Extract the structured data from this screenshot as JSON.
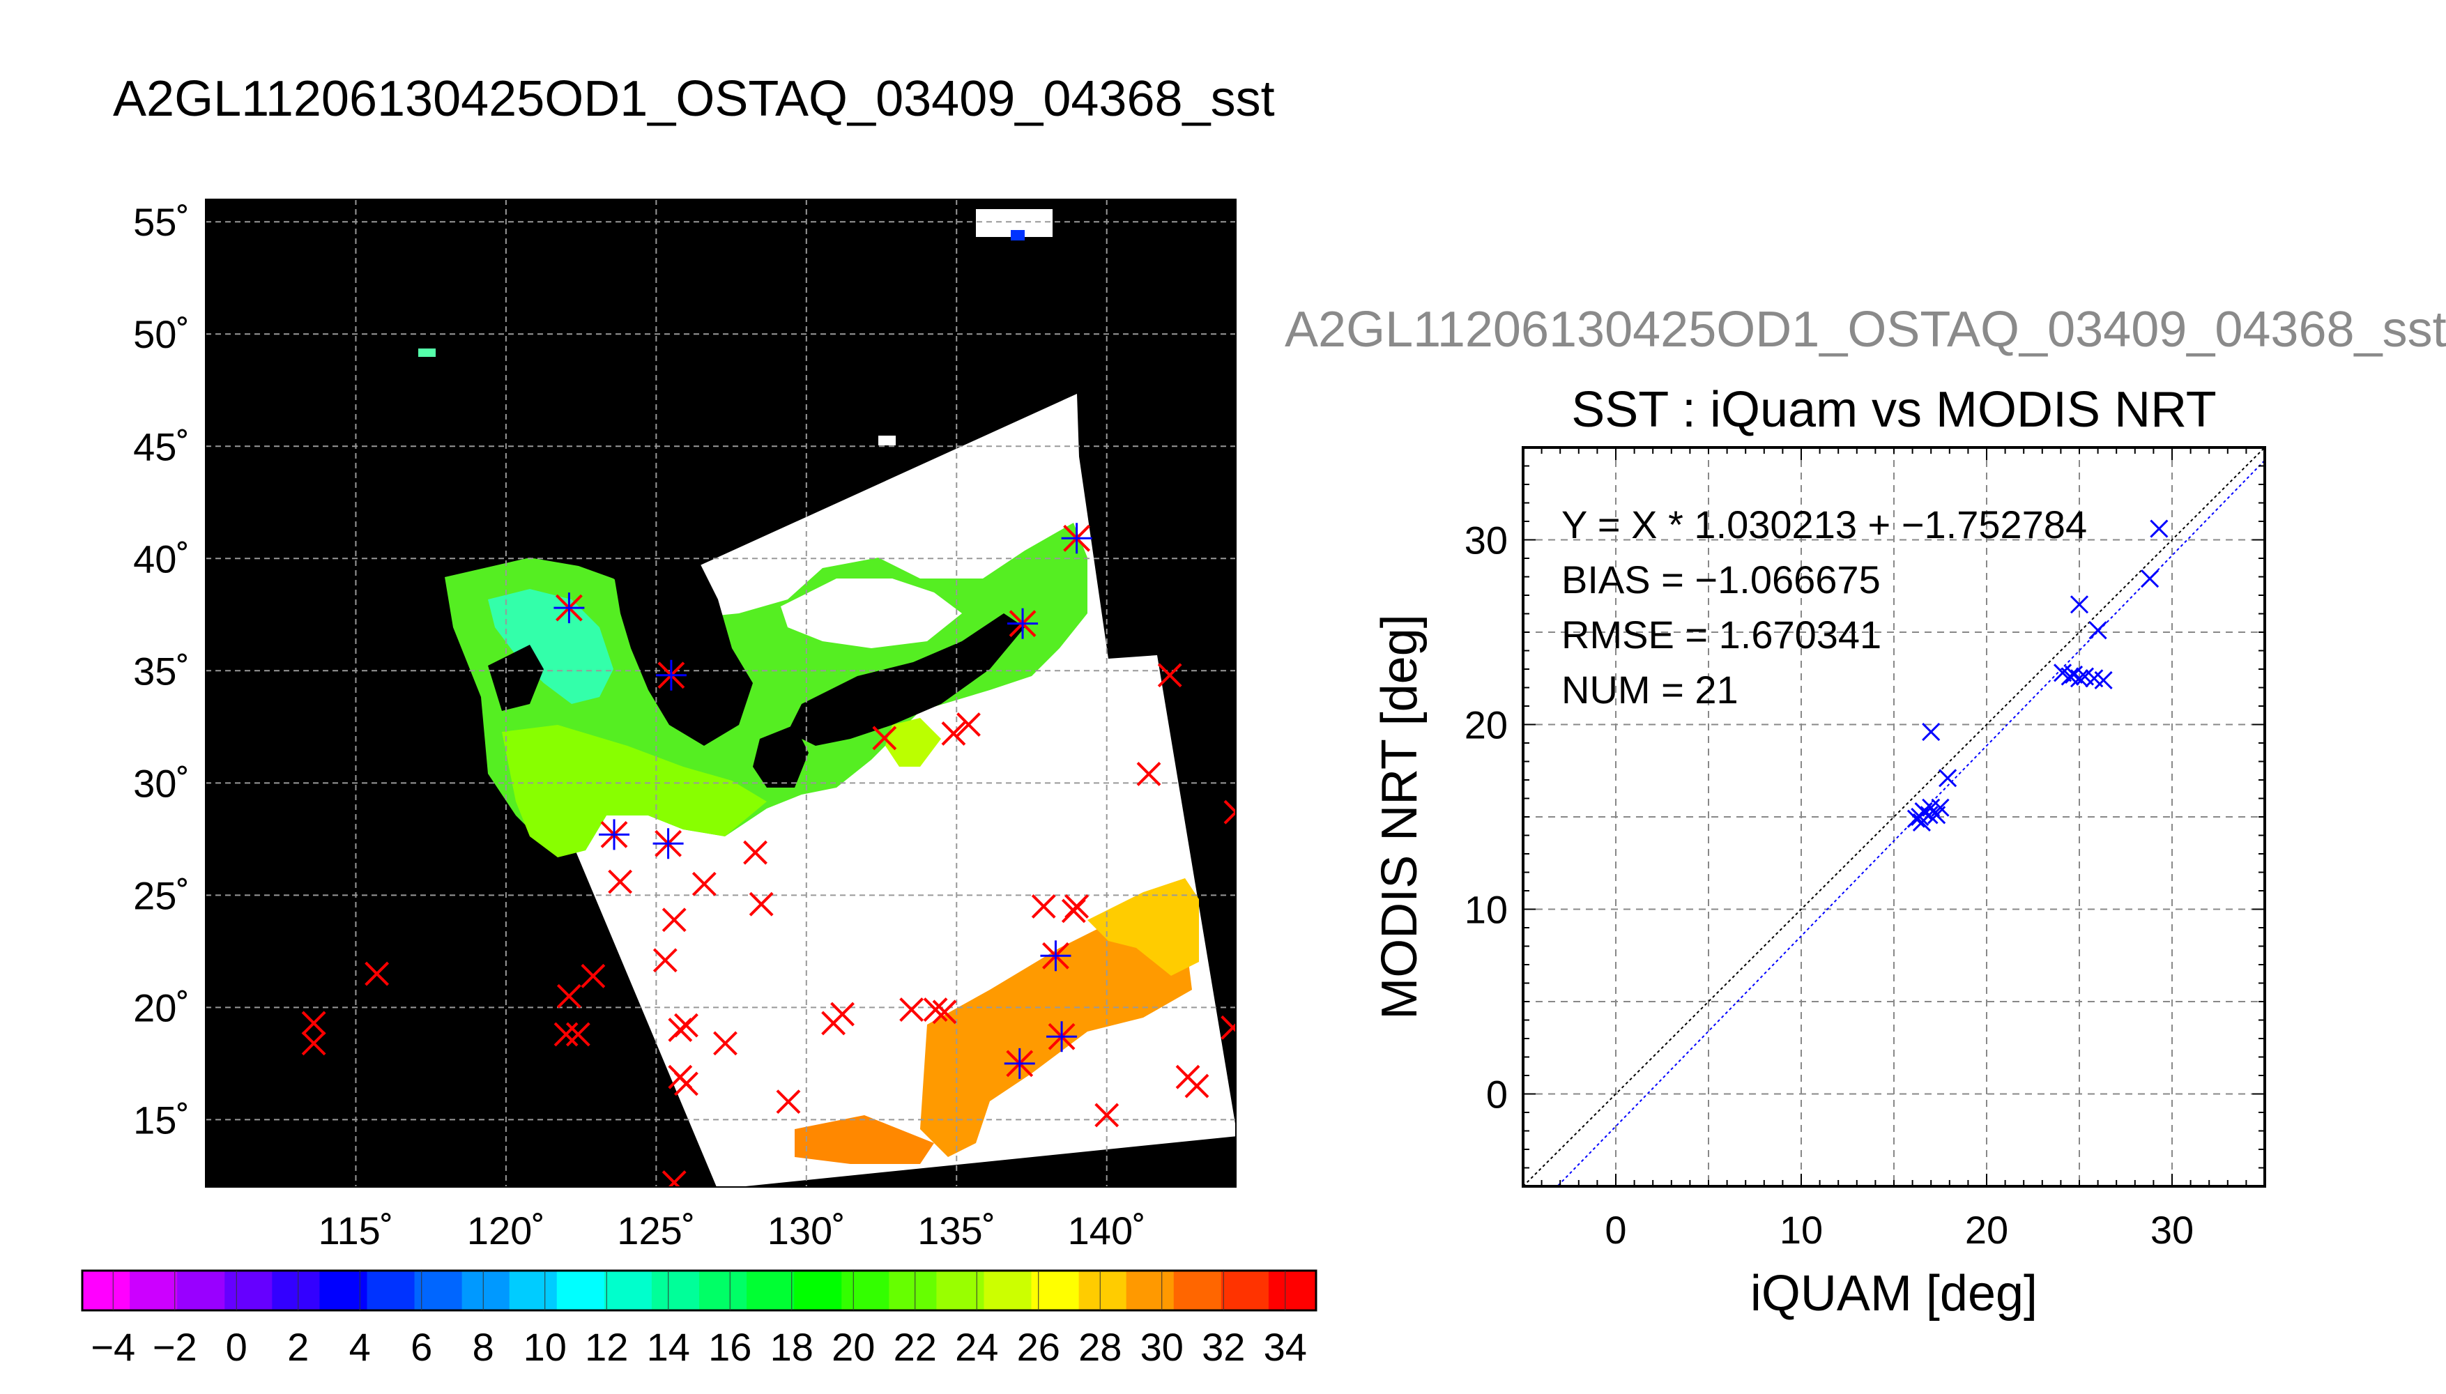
{
  "page_title": "A2GL11206130425OD1_OSTAQ_03409_04368_sst",
  "colors": {
    "map_bg": "#000000",
    "track_red": "#ff0000",
    "match_blue": "#0000ff",
    "fit_line": "#0000ff",
    "one_to_one": "#000000"
  },
  "chart_data": [
    {
      "type": "heatmap",
      "name": "sst-map",
      "lon_ticks": [
        115,
        120,
        125,
        130,
        135,
        140
      ],
      "lat_ticks": [
        15,
        20,
        25,
        30,
        35,
        40,
        45,
        50,
        55
      ],
      "lon_tick_labels": [
        "115˚",
        "120˚",
        "125˚",
        "130˚",
        "135˚",
        "140˚"
      ],
      "lat_tick_labels": [
        "15˚",
        "20˚",
        "25˚",
        "30˚",
        "35˚",
        "40˚",
        "45˚",
        "50˚",
        "55˚"
      ],
      "lon_range": [
        110,
        144.3
      ],
      "lat_range": [
        12,
        56
      ],
      "colorbar": {
        "range": [
          -5,
          35
        ],
        "tick_values": [
          -4,
          -2,
          0,
          2,
          4,
          6,
          8,
          10,
          12,
          14,
          16,
          18,
          20,
          22,
          24,
          26,
          28,
          30,
          32,
          34
        ],
        "tick_labels": [
          "−4",
          "−2",
          "0",
          "2",
          "4",
          "6",
          "8",
          "10",
          "12",
          "14",
          "16",
          "18",
          "20",
          "22",
          "24",
          "26",
          "28",
          "30",
          "32",
          "34"
        ],
        "colors": [
          "#ff00ff",
          "#cc00ff",
          "#9900ff",
          "#6600ff",
          "#3300ff",
          "#0000ff",
          "#0033ff",
          "#0066ff",
          "#0099ff",
          "#00ccff",
          "#00ffff",
          "#00ffcc",
          "#00ff99",
          "#00ff66",
          "#00ff33",
          "#00ff00",
          "#33ff00",
          "#66ff00",
          "#99ff00",
          "#ccff00",
          "#ffff00",
          "#ffcc00",
          "#ff9900",
          "#ff6600",
          "#ff3300",
          "#ff0000"
        ]
      },
      "iquam_points": [
        [
          113.6,
          19.3
        ],
        [
          113.6,
          18.4
        ],
        [
          115.7,
          21.5
        ],
        [
          122.1,
          20.5
        ],
        [
          122.0,
          18.8
        ],
        [
          122.4,
          18.8
        ],
        [
          122.9,
          21.4
        ],
        [
          123.8,
          25.6
        ],
        [
          125.3,
          22.1
        ],
        [
          125.6,
          23.9
        ],
        [
          125.8,
          19.0
        ],
        [
          126.0,
          19.2
        ],
        [
          125.8,
          16.9
        ],
        [
          126.0,
          16.6
        ],
        [
          125.6,
          12.2
        ],
        [
          127.3,
          18.4
        ],
        [
          126.6,
          25.5
        ],
        [
          128.3,
          26.9
        ],
        [
          128.5,
          24.6
        ],
        [
          129.4,
          15.8
        ],
        [
          130.9,
          19.3
        ],
        [
          131.2,
          19.7
        ],
        [
          132.6,
          32.0
        ],
        [
          133.5,
          19.9
        ],
        [
          134.3,
          19.9
        ],
        [
          134.6,
          19.8
        ],
        [
          134.9,
          32.2
        ],
        [
          135.4,
          32.6
        ],
        [
          137.9,
          24.5
        ],
        [
          138.9,
          24.3
        ],
        [
          139.0,
          24.5
        ],
        [
          140.0,
          15.2
        ],
        [
          141.4,
          30.4
        ],
        [
          142.1,
          34.8
        ],
        [
          142.7,
          16.9
        ],
        [
          143.0,
          16.5
        ],
        [
          144.3,
          28.7
        ],
        [
          144.2,
          19.1
        ]
      ],
      "matched_points": [
        [
          122.1,
          37.8
        ],
        [
          125.5,
          34.8
        ],
        [
          123.6,
          27.7
        ],
        [
          125.4,
          27.3
        ],
        [
          137.2,
          37.1
        ],
        [
          139.0,
          40.9
        ],
        [
          138.3,
          22.3
        ],
        [
          138.5,
          18.7
        ],
        [
          137.1,
          17.5
        ]
      ]
    },
    {
      "type": "scatter",
      "name": "sst-scatter",
      "header": "A2GL11206130425OD1_OSTAQ_03409_04368_sst",
      "title": "SST : iQuam vs MODIS NRT",
      "xlabel": "iQUAM [deg]",
      "ylabel": "MODIS NRT [deg]",
      "xlim": [
        -5,
        35
      ],
      "ylim": [
        -5,
        35
      ],
      "xticks": [
        0,
        10,
        20,
        30
      ],
      "yticks": [
        0,
        10,
        20,
        30
      ],
      "grid": true,
      "fit": {
        "slope": 1.030213,
        "intercept": -1.752784
      },
      "annotations": [
        "Y = X * 1.030213 + −1.752784",
        "BIAS = −1.066675",
        "RMSE = 1.670341",
        "NUM = 21"
      ],
      "points": [
        {
          "x": 16.2,
          "y": 14.9
        },
        {
          "x": 16.5,
          "y": 14.7
        },
        {
          "x": 16.6,
          "y": 15.3
        },
        {
          "x": 16.9,
          "y": 15.1
        },
        {
          "x": 17.0,
          "y": 15.5
        },
        {
          "x": 17.3,
          "y": 15.1
        },
        {
          "x": 17.5,
          "y": 15.5
        },
        {
          "x": 17.9,
          "y": 17.1
        },
        {
          "x": 17.0,
          "y": 19.6
        },
        {
          "x": 24.1,
          "y": 22.8
        },
        {
          "x": 24.5,
          "y": 22.6
        },
        {
          "x": 25.0,
          "y": 22.5
        },
        {
          "x": 25.3,
          "y": 22.6
        },
        {
          "x": 25.8,
          "y": 22.5
        },
        {
          "x": 26.3,
          "y": 22.4
        },
        {
          "x": 25.0,
          "y": 26.5
        },
        {
          "x": 26.0,
          "y": 25.1
        },
        {
          "x": 28.8,
          "y": 27.9
        },
        {
          "x": 29.3,
          "y": 30.6
        },
        {
          "x": 24.7,
          "y": 22.7
        },
        {
          "x": 16.4,
          "y": 15.0
        }
      ]
    }
  ]
}
